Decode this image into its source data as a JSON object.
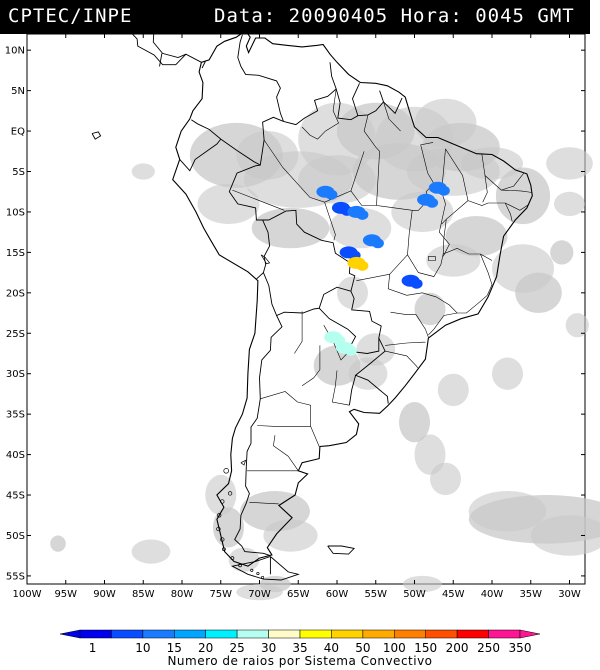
{
  "title": {
    "left": "CPTEC/INPE",
    "right": "Data: 20090405 Hora: 0045 GMT"
  },
  "map": {
    "lat_labels": [
      "10N",
      "5N",
      "EQ",
      "5S",
      "10S",
      "15S",
      "20S",
      "25S",
      "30S",
      "35S",
      "40S",
      "45S",
      "50S",
      "55S"
    ],
    "lon_labels": [
      "100W",
      "95W",
      "90W",
      "85W",
      "80W",
      "75W",
      "70W",
      "65W",
      "60W",
      "55W",
      "50W",
      "45W",
      "40W",
      "35W",
      "30W"
    ],
    "lat_range": [
      -56,
      12
    ],
    "lon_range": [
      -100,
      -28
    ],
    "cloud_color": "#c8c8c8",
    "storms": [
      {
        "lon": -61.5,
        "lat": -7.5,
        "class": 2
      },
      {
        "lon": -59.5,
        "lat": -9.5,
        "class": 1
      },
      {
        "lon": -57.5,
        "lat": -10.0,
        "class": 2
      },
      {
        "lon": -47.0,
        "lat": -7.0,
        "class": 2
      },
      {
        "lon": -48.5,
        "lat": -8.5,
        "class": 2
      },
      {
        "lon": -55.5,
        "lat": -13.5,
        "class": 2
      },
      {
        "lon": -58.5,
        "lat": -15.0,
        "class": 1
      },
      {
        "lon": -57.5,
        "lat": -16.3,
        "class": 8
      },
      {
        "lon": -50.5,
        "lat": -18.5,
        "class": 1
      },
      {
        "lon": -60.5,
        "lat": -25.5,
        "class": 5
      },
      {
        "lon": -59.0,
        "lat": -26.8,
        "class": 5
      }
    ]
  },
  "legend": {
    "labels": [
      "1",
      "10",
      "15",
      "20",
      "25",
      "30",
      "35",
      "40",
      "50",
      "100",
      "150",
      "200",
      "250",
      "350"
    ],
    "colors": [
      "#0000ee",
      "#0a4cff",
      "#1a7bff",
      "#00a5ff",
      "#00f0ff",
      "#b4fff0",
      "#fffcc8",
      "#ffff00",
      "#ffd200",
      "#ffaa00",
      "#ff8000",
      "#ff5000",
      "#ff0000",
      "#ff1493"
    ],
    "caption": "Numero de raios por Sistema Convectivo"
  }
}
